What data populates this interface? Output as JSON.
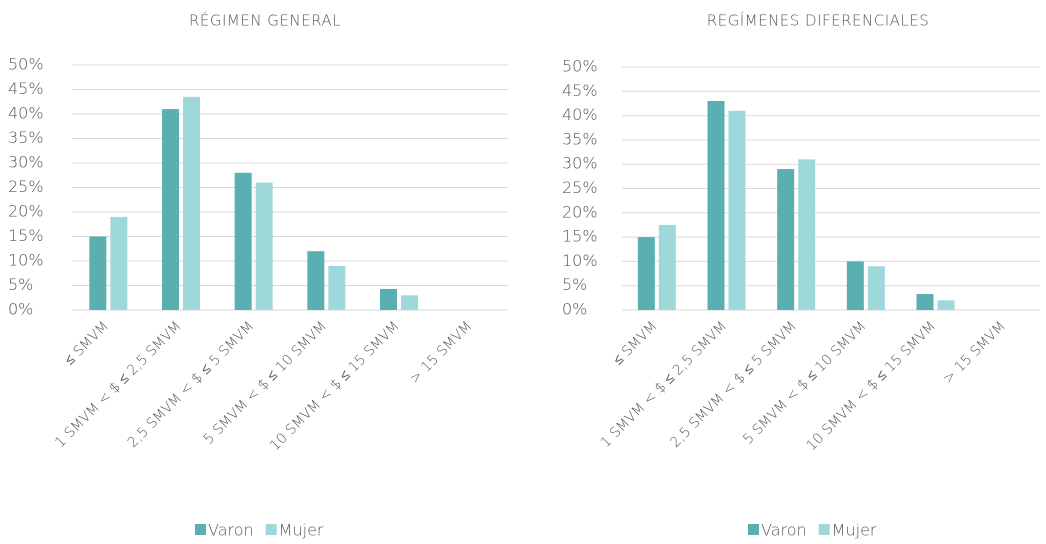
{
  "chart_data": [
    {
      "type": "bar",
      "title": "RÉGIMEN GENERAL",
      "categories": [
        "≤ SMVM",
        "1 SMVM < $ ≤ 2,5 SMVM",
        "2,5 SMVM < $ ≤ 5 SMVM",
        "5 SMVM < $ ≤ 10 SMVM",
        "10 SMVM < $ ≤ 15 SMVM",
        "> 15 SMVM"
      ],
      "series": [
        {
          "name": "Varon",
          "color": "#5aafb0",
          "values": [
            15,
            41,
            28,
            12,
            4.3,
            0
          ]
        },
        {
          "name": "Mujer",
          "color": "#9fd8da",
          "values": [
            19,
            43.5,
            26,
            9,
            3,
            0
          ]
        }
      ],
      "ylim": [
        0,
        50
      ],
      "yticks": [
        {
          "value": 0,
          "label": "0%"
        },
        {
          "value": 5,
          "label": "5%"
        },
        {
          "value": 10,
          "label": "10%"
        },
        {
          "value": 15,
          "label": "15%"
        },
        {
          "value": 20,
          "label": "20%"
        },
        {
          "value": 25,
          "label": "25%"
        },
        {
          "value": 30,
          "label": "30%"
        },
        {
          "value": 35,
          "label": "35%"
        },
        {
          "value": 40,
          "label": "40%"
        },
        {
          "value": 45,
          "label": "45%"
        },
        {
          "value": 50,
          "label": "50%"
        }
      ],
      "grid": true,
      "legend": "bottom"
    },
    {
      "type": "bar",
      "title": "REGÍMENES DIFERENCIALES",
      "categories": [
        "≤ SMVM",
        "1 SMVM < $ ≤ 2,5 SMVM",
        "2,5 SMVM < $ ≤ 5 SMVM",
        "5 SMVM < $ ≤ 10 SMVM",
        "10 SMVM < $ ≤ 15 SMVM",
        "> 15 SMVM"
      ],
      "series": [
        {
          "name": "Varon",
          "color": "#5aafb0",
          "values": [
            15,
            43,
            29,
            10,
            3.3,
            0
          ]
        },
        {
          "name": "Mujer",
          "color": "#9fd8da",
          "values": [
            17.5,
            41,
            31,
            9,
            2,
            0
          ]
        }
      ],
      "ylim": [
        0,
        50
      ],
      "yticks": [
        {
          "value": 0,
          "label": "0%"
        },
        {
          "value": 5,
          "label": "5%"
        },
        {
          "value": 10,
          "label": "10%"
        },
        {
          "value": 15,
          "label": "15%"
        },
        {
          "value": 20,
          "label": "20%"
        },
        {
          "value": 25,
          "label": "25%"
        },
        {
          "value": 30,
          "label": "30%"
        },
        {
          "value": 35,
          "label": "35%"
        },
        {
          "value": 40,
          "label": "40%"
        },
        {
          "value": 45,
          "label": "45%"
        },
        {
          "value": 50,
          "label": "50%"
        }
      ],
      "grid": true,
      "legend": "bottom"
    }
  ]
}
